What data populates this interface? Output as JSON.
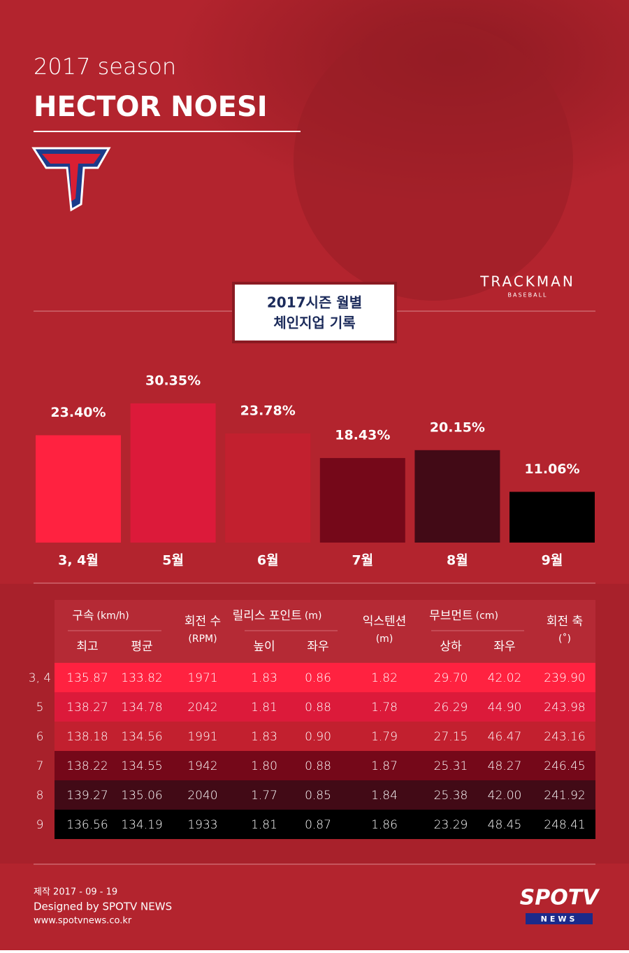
{
  "header": {
    "season": "2017 season",
    "player": "HECTOR NOESI",
    "brand": "TRACKMAN",
    "brand_sub": "BASEBALL"
  },
  "chart_data": {
    "type": "bar",
    "title": [
      "2017시즌 월별",
      "체인지업 기록"
    ],
    "categories": [
      "3, 4월",
      "5월",
      "6월",
      "7월",
      "8월",
      "9월"
    ],
    "values": [
      23.4,
      30.35,
      23.78,
      18.43,
      20.15,
      11.06
    ],
    "value_labels": [
      "23.40%",
      "30.35%",
      "23.78%",
      "18.43%",
      "20.15%",
      "11.06%"
    ],
    "colors": [
      "#ff2240",
      "#dc1a3a",
      "#c2202f",
      "#750819",
      "#420a16",
      "#000000"
    ]
  },
  "table": {
    "headers": [
      {
        "label": "구속",
        "unit": "(km/h)",
        "sub": [
          "최고",
          "평균"
        ]
      },
      {
        "label": "회전 수",
        "unit": "(RPM)"
      },
      {
        "label": "릴리스 포인트",
        "unit": "(m)",
        "sub": [
          "높이",
          "좌우"
        ]
      },
      {
        "label": "익스텐션",
        "unit": "(m)"
      },
      {
        "label": "무브먼트",
        "unit": "(cm)",
        "sub": [
          "상하",
          "좌우"
        ]
      },
      {
        "label": "회전 축",
        "unit": "(˚)"
      }
    ],
    "rows": [
      [
        "3, 4",
        "135.87",
        "133.82",
        "1971",
        "1.83",
        "0.86",
        "1.82",
        "29.70",
        "42.02",
        "239.90"
      ],
      [
        "5",
        "138.27",
        "134.78",
        "2042",
        "1.81",
        "0.88",
        "1.78",
        "26.29",
        "44.90",
        "243.98"
      ],
      [
        "6",
        "138.18",
        "134.56",
        "1991",
        "1.83",
        "0.90",
        "1.79",
        "27.15",
        "46.47",
        "243.16"
      ],
      [
        "7",
        "138.22",
        "134.55",
        "1942",
        "1.80",
        "0.88",
        "1.87",
        "25.31",
        "48.27",
        "246.45"
      ],
      [
        "8",
        "139.27",
        "135.06",
        "2040",
        "1.77",
        "0.85",
        "1.84",
        "25.38",
        "42.00",
        "241.92"
      ],
      [
        "9",
        "136.56",
        "134.19",
        "1933",
        "1.81",
        "0.87",
        "1.86",
        "23.29",
        "48.45",
        "248.41"
      ]
    ]
  },
  "footer": {
    "made": "제작 2017 - 09 - 19",
    "designer": "Designed by SPOTV NEWS",
    "url": "www.spotvnews.co.kr",
    "logo": "SPOTV",
    "logo_sub": "NEWS"
  }
}
